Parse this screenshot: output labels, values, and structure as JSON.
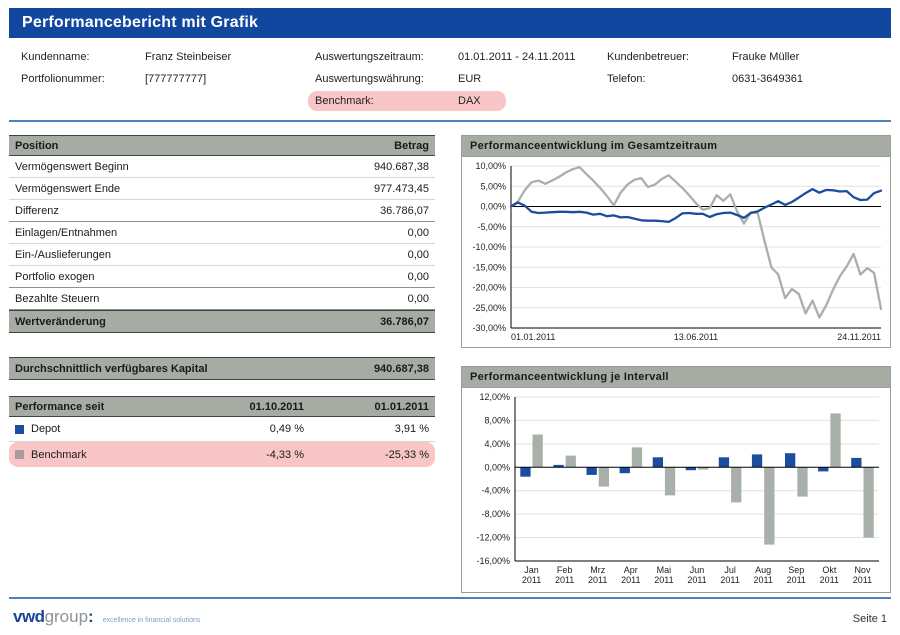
{
  "title": "Performancebericht mit Grafik",
  "header": {
    "kundenname_label": "Kundenname:",
    "kundenname": "Franz Steinbeiser",
    "portfolionummer_label": "Portfolionummer:",
    "portfolionummer": "[777777777]",
    "zeitraum_label": "Auswertungszeitraum:",
    "zeitraum": "01.01.2011 - 24.11.2011",
    "waehrung_label": "Auswertungswährung:",
    "waehrung": "EUR",
    "benchmark_label": "Benchmark:",
    "benchmark": "DAX",
    "betreuer_label": "Kundenbetreuer:",
    "betreuer": "Frauke Müller",
    "telefon_label": "Telefon:",
    "telefon": "0631-3649361"
  },
  "position_table": {
    "header_label": "Position",
    "header_value": "Betrag",
    "rows": [
      {
        "label": "Vermögenswert Beginn",
        "value": "940.687,38"
      },
      {
        "label": "Vermögenswert Ende",
        "value": "977.473,45"
      },
      {
        "label": "Differenz",
        "value": "36.786,07"
      },
      {
        "label": "Einlagen/Entnahmen",
        "value": "0,00"
      },
      {
        "label": "Ein-/Auslieferungen",
        "value": "0,00"
      },
      {
        "label": "Portfolio exogen",
        "value": "0,00"
      },
      {
        "label": "Bezahlte Steuern",
        "value": "0,00"
      }
    ],
    "footer_label": "Wertveränderung",
    "footer_value": "36.786,07"
  },
  "kapital": {
    "label": "Durchschnittlich verfügbares Kapital",
    "value": "940.687,38"
  },
  "performance_table": {
    "header_label": "Performance seit",
    "header_col1": "01.10.2011",
    "header_col2": "01.01.2011",
    "rows": [
      {
        "name": "Depot",
        "col1": "0,49 %",
        "col2": "3,91 %"
      },
      {
        "name": "Benchmark",
        "col1": "-4,33 %",
        "col2": "-25,33 %"
      }
    ]
  },
  "footer": {
    "logo_bold": "vwd",
    "logo_light": "group",
    "logo_colon": ":",
    "tagline": "excellence in financial solutions",
    "page": "Seite 1"
  },
  "colors": {
    "header_bar_blue": "#11479e",
    "section_header_gray": "#a6aca4",
    "highlight_pink": "#f8c6c6",
    "depot_blue": "#1b4d9e",
    "benchmark_gray": "#a9b0aa",
    "benchmark_legend_gray": "#a79c9c",
    "rule_blue": "#4f81bd"
  },
  "chart_data": [
    {
      "type": "line",
      "title": "Performanceentwicklung im Gesamtzeitraum",
      "ylabel": "",
      "xlabel": "",
      "ylim": [
        -30,
        10
      ],
      "y_tick_step": 5,
      "y_tick_format": "german_percent",
      "grid": true,
      "legend_position": "none",
      "x_tick_labels": [
        "01.01.2011",
        "13.06.2011",
        "24.11.2011"
      ],
      "series": [
        {
          "name": "Depot",
          "color": "#1b4d9e",
          "values": [
            0.0,
            1.0,
            0.2,
            -1.3,
            -1.6,
            -1.5,
            -1.4,
            -1.3,
            -1.3,
            -1.4,
            -1.3,
            -1.5,
            -2.0,
            -1.8,
            -2.4,
            -2.2,
            -2.7,
            -2.6,
            -3.0,
            -3.4,
            -3.5,
            -3.5,
            -3.6,
            -3.8,
            -2.9,
            -1.7,
            -1.6,
            -1.8,
            -1.8,
            -2.6,
            -1.9,
            -1.6,
            -1.5,
            -2.1,
            -2.8,
            -1.6,
            -1.2,
            -0.3,
            0.5,
            1.3,
            0.4,
            1.1,
            2.2,
            3.3,
            4.3,
            3.4,
            4.1,
            4.0,
            3.7,
            3.8,
            2.3,
            1.6,
            1.7,
            3.3,
            3.9
          ]
        },
        {
          "name": "Benchmark",
          "color": "#a9b0aa",
          "values": [
            0.0,
            1.2,
            4.0,
            6.0,
            6.4,
            5.6,
            6.4,
            7.3,
            8.4,
            9.2,
            9.7,
            8.0,
            6.4,
            4.6,
            2.6,
            0.3,
            3.4,
            5.4,
            6.6,
            7.0,
            4.8,
            5.4,
            6.8,
            7.7,
            6.2,
            4.6,
            2.8,
            0.8,
            -0.8,
            -0.4,
            2.8,
            1.4,
            3.0,
            -1.2,
            -4.2,
            -1.4,
            -1.6,
            -8.5,
            -15.0,
            -16.8,
            -22.6,
            -20.4,
            -21.6,
            -26.4,
            -23.2,
            -27.4,
            -24.4,
            -20.6,
            -17.2,
            -14.8,
            -11.7,
            -16.8,
            -15.2,
            -16.4,
            -25.3
          ]
        }
      ]
    },
    {
      "type": "bar",
      "title": "Performanceentwicklung je Intervall",
      "ylabel": "",
      "xlabel": "",
      "ylim": [
        -16,
        12
      ],
      "y_tick_step": 4,
      "y_tick_format": "german_percent",
      "grid": true,
      "legend_position": "none",
      "categories": [
        "Jan",
        "Feb",
        "Mrz",
        "Apr",
        "Mai",
        "Jun",
        "Jul",
        "Aug",
        "Sep",
        "Okt",
        "Nov"
      ],
      "category_year": "2011",
      "series": [
        {
          "name": "Depot",
          "color": "#1b4d9e",
          "values": [
            -1.6,
            0.4,
            -1.3,
            -1.0,
            1.7,
            -0.5,
            1.7,
            2.2,
            2.4,
            -0.7,
            1.6
          ]
        },
        {
          "name": "Benchmark",
          "color": "#a9b0aa",
          "values": [
            5.6,
            2.0,
            -3.3,
            3.4,
            -4.8,
            -0.4,
            -6.0,
            -13.2,
            -5.0,
            9.2,
            -12.0
          ]
        }
      ]
    }
  ]
}
